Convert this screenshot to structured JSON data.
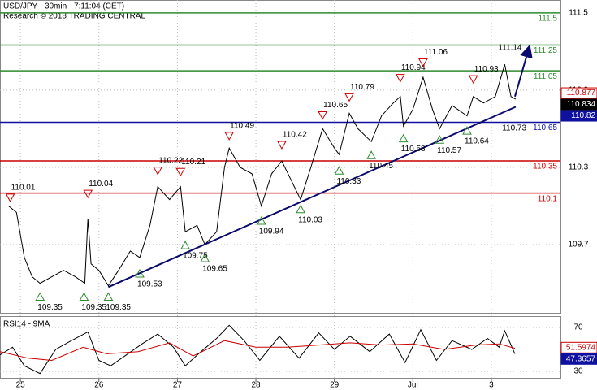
{
  "chart_data": [
    {
      "type": "line",
      "title": "USD/JPY - 30min - 7:11:04 (CET)",
      "subtitle": "Research © 2018 TRADING CENTRAL",
      "xlim": [
        -0.26,
        6.88
      ],
      "xticks": [
        {
          "value": 0,
          "label": "25"
        },
        {
          "value": 1,
          "label": "26"
        },
        {
          "value": 2,
          "label": "27"
        },
        {
          "value": 3,
          "label": "28"
        },
        {
          "value": 4,
          "label": "29"
        },
        {
          "value": 5,
          "label": "Jul"
        },
        {
          "value": 6,
          "label": "3"
        }
      ],
      "ylim": [
        109.17,
        111.6
      ],
      "yticks": [
        111.5,
        110.9,
        110.3,
        109.7
      ],
      "series": [
        {
          "color": "#000000",
          "x": [
            -0.26,
            -0.15,
            -0.05,
            0.05,
            0.15,
            0.25,
            0.4,
            0.55,
            0.7,
            0.82,
            0.86,
            0.9,
            1.0,
            1.12,
            1.25,
            1.4,
            1.52,
            1.65,
            1.75,
            1.9,
            2.04,
            2.1,
            2.25,
            2.35,
            2.5,
            2.6,
            2.66,
            2.8,
            2.95,
            3.07,
            3.2,
            3.33,
            3.45,
            3.57,
            3.7,
            3.85,
            4.0,
            4.06,
            4.19,
            4.3,
            4.47,
            4.6,
            4.75,
            4.84,
            4.88,
            5.0,
            5.13,
            5.25,
            5.34,
            5.5,
            5.69,
            5.77,
            5.9,
            6.05,
            6.17,
            6.25,
            6.31
          ],
          "values": [
            110.0,
            110.0,
            109.95,
            109.6,
            109.45,
            109.4,
            109.45,
            109.5,
            109.45,
            109.4,
            109.9,
            109.55,
            109.5,
            109.38,
            109.5,
            109.65,
            109.6,
            109.85,
            110.15,
            110.05,
            110.15,
            109.8,
            109.85,
            109.7,
            109.8,
            110.3,
            110.45,
            110.3,
            110.25,
            110.0,
            110.25,
            110.35,
            110.2,
            110.05,
            110.3,
            110.6,
            110.45,
            110.4,
            110.72,
            110.6,
            110.5,
            110.7,
            110.8,
            110.85,
            110.62,
            110.75,
            111.0,
            110.75,
            110.6,
            110.78,
            110.7,
            110.85,
            110.8,
            110.85,
            111.1,
            110.85,
            110.83
          ]
        }
      ],
      "levels": [
        {
          "value": 111.5,
          "color": "#2e8b2e"
        },
        {
          "value": 111.25,
          "color": "#2e8b2e"
        },
        {
          "value": 111.05,
          "color": "#2e8b2e"
        },
        {
          "value": 110.65,
          "color": "#1010a0"
        },
        {
          "value": 110.35,
          "color": "#cc0000"
        },
        {
          "value": 110.1,
          "color": "#cc0000"
        }
      ],
      "highs": [
        {
          "x": -0.13,
          "value": 110.01
        },
        {
          "x": 0.86,
          "value": 110.04
        },
        {
          "x": 1.75,
          "value": 110.22
        },
        {
          "x": 2.04,
          "value": 110.21
        },
        {
          "x": 2.66,
          "value": 110.49
        },
        {
          "x": 3.33,
          "value": 110.42
        },
        {
          "x": 3.85,
          "value": 110.65
        },
        {
          "x": 4.19,
          "value": 110.79
        },
        {
          "x": 4.84,
          "value": 110.94
        },
        {
          "x": 5.13,
          "value": 111.06
        },
        {
          "x": 5.77,
          "value": 110.93
        }
      ],
      "lows": [
        {
          "x": 0.25,
          "value": 109.35
        },
        {
          "x": 0.81,
          "value": 109.35
        },
        {
          "x": 1.12,
          "value": 109.35
        },
        {
          "x": 1.52,
          "value": 109.53
        },
        {
          "x": 2.1,
          "value": 109.75
        },
        {
          "x": 2.35,
          "value": 109.65
        },
        {
          "x": 3.07,
          "value": 109.94
        },
        {
          "x": 3.57,
          "value": 110.03
        },
        {
          "x": 4.06,
          "value": 110.33
        },
        {
          "x": 4.47,
          "value": 110.45
        },
        {
          "x": 4.88,
          "value": 110.58
        },
        {
          "x": 5.34,
          "value": 110.57
        },
        {
          "x": 5.69,
          "value": 110.64
        }
      ],
      "labels": [
        {
          "x": 6.17,
          "value": 111.14
        },
        {
          "x": 6.22,
          "value": 110.73
        }
      ],
      "trendline": {
        "x": [
          1.12,
          6.31
        ],
        "y": [
          109.37,
          110.77
        ]
      },
      "arrow": {
        "x": [
          6.3,
          6.48
        ],
        "y": [
          110.85,
          111.23
        ]
      },
      "price_labels": [
        {
          "value": 110.877,
          "color": "#cc0000"
        },
        {
          "value": 110.834,
          "color": "#000000"
        },
        {
          "value": 110.82,
          "color": "#1010a0"
        }
      ]
    },
    {
      "type": "line",
      "title": "RSI14 - 9MA",
      "ylim": [
        23.3,
        79.6
      ],
      "yticks": [
        70,
        30
      ],
      "series": [
        {
          "color": "#000000",
          "x": [
            -0.26,
            -0.1,
            0.05,
            0.25,
            0.45,
            0.65,
            0.86,
            1.0,
            1.15,
            1.35,
            1.55,
            1.75,
            1.95,
            2.1,
            2.3,
            2.5,
            2.66,
            2.85,
            3.05,
            3.3,
            3.55,
            3.8,
            4.0,
            4.2,
            4.45,
            4.7,
            4.9,
            5.1,
            5.3,
            5.5,
            5.75,
            5.95,
            6.1,
            6.17,
            6.3
          ],
          "values": [
            45,
            52,
            35,
            28,
            50,
            58,
            66,
            40,
            35,
            45,
            55,
            64,
            52,
            35,
            48,
            60,
            72,
            58,
            40,
            62,
            42,
            65,
            50,
            62,
            48,
            64,
            38,
            68,
            40,
            58,
            50,
            60,
            52,
            67,
            46
          ]
        },
        {
          "color": "#cc0000",
          "x": [
            -0.26,
            0.1,
            0.4,
            0.8,
            1.1,
            1.5,
            1.9,
            2.2,
            2.6,
            3.0,
            3.4,
            3.8,
            4.2,
            4.6,
            5.0,
            5.4,
            5.8,
            6.1,
            6.3
          ],
          "values": [
            48,
            42,
            40,
            52,
            46,
            48,
            56,
            44,
            58,
            52,
            52,
            54,
            56,
            54,
            55,
            50,
            54,
            55,
            51
          ]
        }
      ],
      "price_labels": [
        {
          "value": 51.5974,
          "color": "#cc0000"
        },
        {
          "value": 47.3657,
          "color": "#1010a0"
        }
      ]
    }
  ]
}
